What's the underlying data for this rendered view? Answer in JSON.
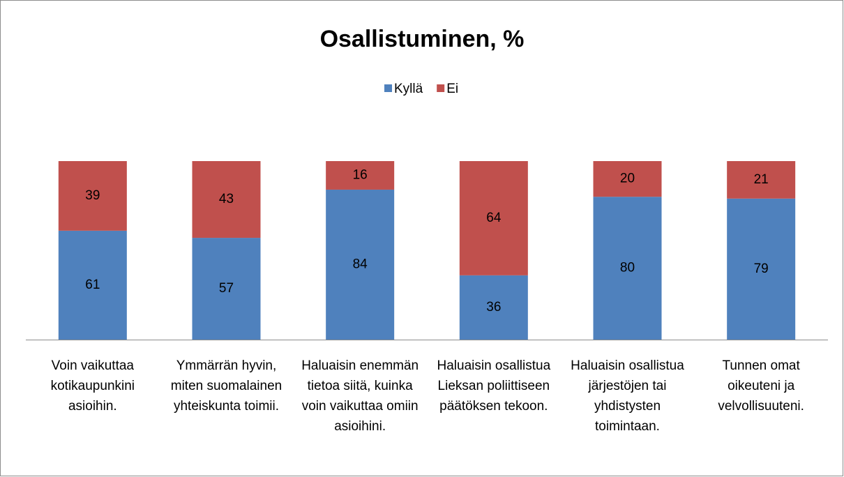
{
  "chart_data": {
    "type": "bar",
    "stacked": true,
    "title": "Osallistuminen, %",
    "categories": [
      "Voin vaikuttaa kotikaupunkini asioihin.",
      "Ymmärrän hyvin, miten suomalainen yhteiskunta toimii.",
      "Haluaisin enemmän tietoa siitä, kuinka voin vaikuttaa omiin asioihini.",
      "Haluaisin osallistua Lieksan poliittiseen päätöksen tekoon.",
      "Haluaisin osallistua järjestöjen tai yhdistysten toimintaan.",
      "Tunnen omat oikeuteni ja velvollisuuteni."
    ],
    "series": [
      {
        "name": "Kyllä",
        "color": "#4f81bd",
        "values": [
          61,
          57,
          84,
          36,
          80,
          79
        ]
      },
      {
        "name": "Ei",
        "color": "#c0504d",
        "values": [
          39,
          43,
          16,
          64,
          20,
          21
        ]
      }
    ],
    "ylim": [
      0,
      100
    ],
    "legend": "top"
  }
}
